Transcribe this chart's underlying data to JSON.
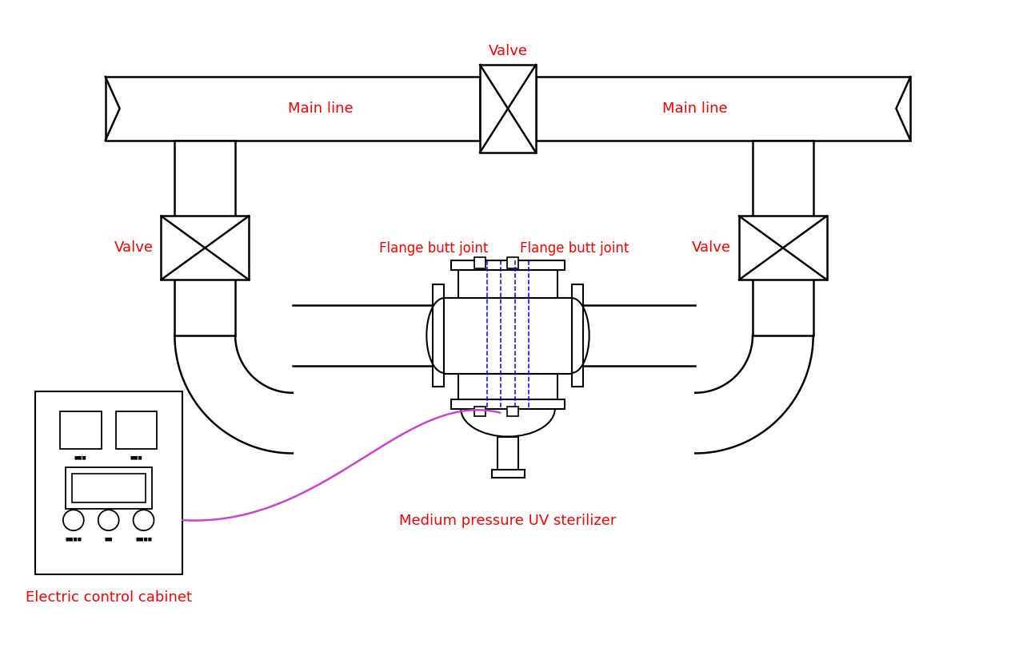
{
  "bg_color": "#ffffff",
  "line_color": "#000000",
  "red_color": "#ff0000",
  "blue_color": "#0000ff",
  "magenta_color": "#cc44cc",
  "label_main_line_left": "Main line",
  "label_main_line_right": "Main line",
  "label_valve_top": "Valve",
  "label_valve_left": "Valve",
  "label_valve_right": "Valve",
  "label_flange_left": "Flange butt joint",
  "label_flange_right": "Flange butt joint",
  "label_uv": "Medium pressure UV sterilizer",
  "label_cabinet": "Electric control cabinet",
  "figsize": [
    12.69,
    8.25
  ],
  "dpi": 100
}
